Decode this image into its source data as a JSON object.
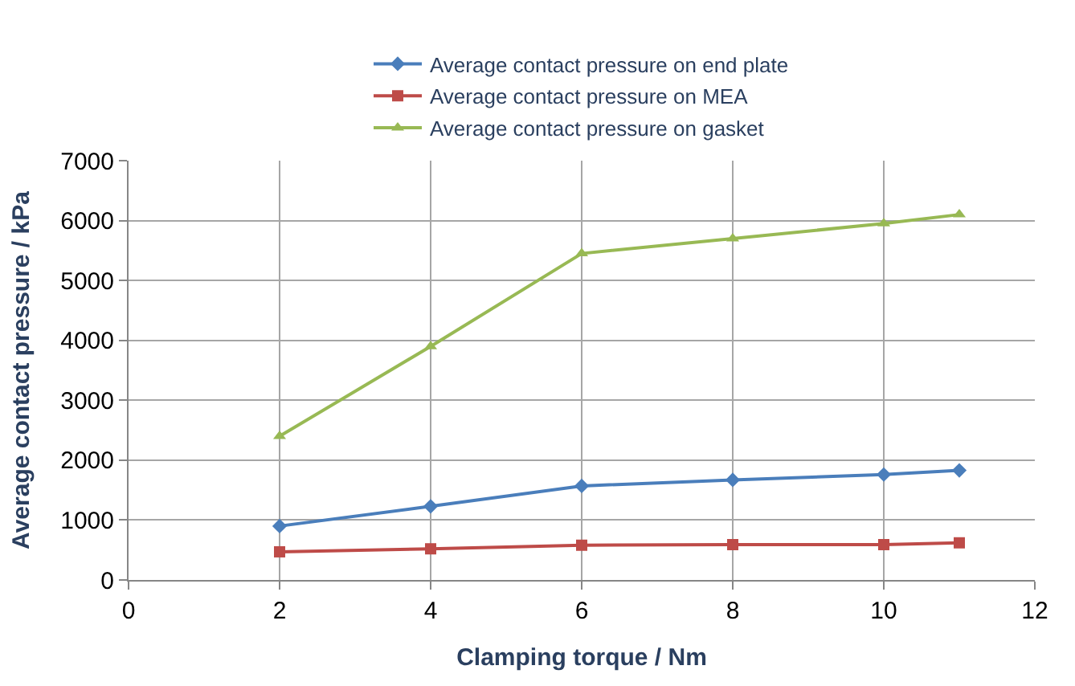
{
  "chart_data": {
    "type": "line",
    "xlabel": "Clamping torque / Nm",
    "ylabel": "Average contact pressure / kPa",
    "x": [
      2,
      4,
      6,
      8,
      10,
      11
    ],
    "series": [
      {
        "name": "Average contact pressure on end plate",
        "color": "#4a7ebb",
        "marker": "diamond",
        "values": [
          900,
          1230,
          1570,
          1670,
          1760,
          1830
        ]
      },
      {
        "name": "Average contact pressure on MEA",
        "color": "#be4b48",
        "marker": "square",
        "values": [
          470,
          520,
          580,
          590,
          590,
          620
        ]
      },
      {
        "name": "Average contact pressure on gasket",
        "color": "#98b954",
        "marker": "triangle",
        "values": [
          2400,
          3900,
          5450,
          5700,
          5950,
          6100
        ]
      }
    ],
    "xlim": [
      0,
      12
    ],
    "xticks": [
      0,
      2,
      4,
      6,
      8,
      10,
      12
    ],
    "ylim": [
      0,
      7000
    ],
    "yticks": [
      0,
      1000,
      2000,
      3000,
      4000,
      5000,
      6000,
      7000
    ],
    "grid": true,
    "legend": "top",
    "line_style": "solid"
  }
}
